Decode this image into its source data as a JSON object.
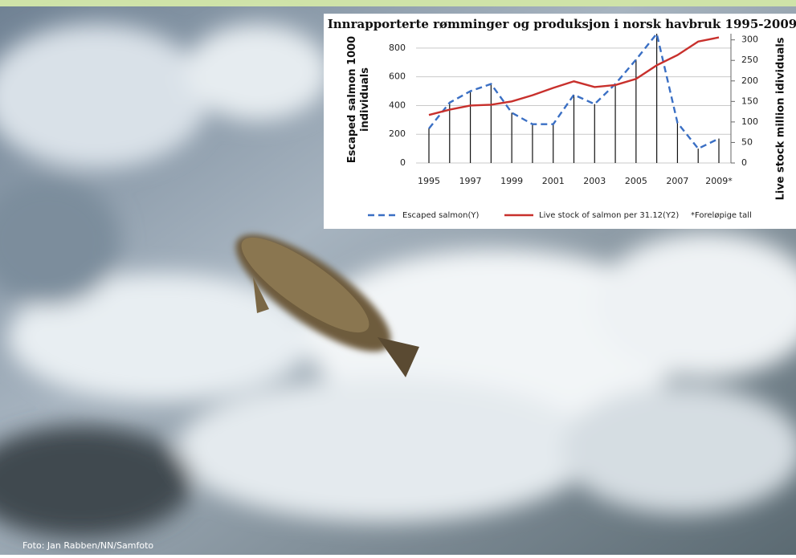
{
  "chart_data": {
    "type": "line",
    "title": "Innrapporterte rømminger og produksjon i norsk havbruk 1995-2009",
    "y_label": [
      "Escaped salmon 1000",
      "individuals"
    ],
    "y2_label": "Live stock  million idividuals",
    "categories": [
      "1995",
      null,
      "1997",
      null,
      "1999",
      null,
      "2001",
      null,
      "2003",
      null,
      "2005",
      null,
      "2007",
      null,
      "2009*"
    ],
    "series": [
      {
        "name": "Escaped salmon(Y)",
        "color": "#3a6fc4",
        "dashed": true,
        "drop_lines": true,
        "values": [
          240,
          420,
          500,
          550,
          350,
          270,
          270,
          475,
          410,
          550,
          720,
          900,
          280,
          100,
          170
        ]
      },
      {
        "name": "Live stock of salmon per 31.12(Y2)",
        "color": "#c8302c",
        "axis": "y2",
        "values": [
          117,
          130,
          140,
          142,
          150,
          165,
          183,
          199,
          185,
          190,
          205,
          238,
          263,
          296,
          306
        ]
      }
    ],
    "note": "*Foreløpige tall",
    "ylim": [
      0,
      900
    ],
    "yticks": [
      0,
      200,
      400,
      600,
      800
    ],
    "y2lim": [
      0,
      315
    ],
    "y2ticks": [
      0,
      50,
      100,
      150,
      200,
      250,
      300
    ],
    "grid": true
  },
  "credit": "Foto: Jan Rabben/NN/Samfoto"
}
